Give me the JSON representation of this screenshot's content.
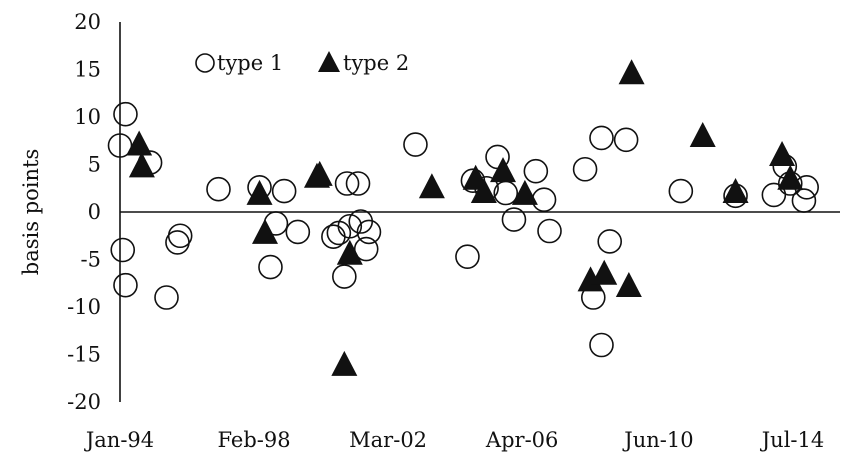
{
  "chart_data": {
    "type": "scatter",
    "title": "",
    "xlabel": "",
    "ylabel": "basis points",
    "x_tick_labels": [
      "Jan-94",
      "Feb-98",
      "Mar-02",
      "Apr-06",
      "Jun-10",
      "Jul-14"
    ],
    "x_tick_dates": [
      "1994-01",
      "1998-02",
      "2002-03",
      "2006-04",
      "2010-06",
      "2014-07"
    ],
    "ylim": [
      -20,
      20
    ],
    "y_ticks": [
      -20,
      -15,
      -10,
      -5,
      0,
      5,
      10,
      15,
      20
    ],
    "grid": false,
    "legend": "top-left",
    "series": [
      {
        "name": "type 1",
        "marker": "open-circle",
        "color": "#111111",
        "points": [
          {
            "x": "1994-01",
            "y": 7.0
          },
          {
            "x": "1994-03",
            "y": 10.3
          },
          {
            "x": "1994-02",
            "y": -4.0
          },
          {
            "x": "1994-03",
            "y": -7.7
          },
          {
            "x": "1994-12",
            "y": 5.2
          },
          {
            "x": "1995-06",
            "y": -9.0
          },
          {
            "x": "1995-10",
            "y": -3.2
          },
          {
            "x": "1995-11",
            "y": -2.5
          },
          {
            "x": "1997-01",
            "y": 2.4
          },
          {
            "x": "1998-04",
            "y": 2.6
          },
          {
            "x": "1998-10",
            "y": -1.2
          },
          {
            "x": "1999-01",
            "y": 2.2
          },
          {
            "x": "1998-08",
            "y": -5.8
          },
          {
            "x": "1999-06",
            "y": -2.1
          },
          {
            "x": "2000-07",
            "y": -2.6
          },
          {
            "x": "2000-09",
            "y": -2.2
          },
          {
            "x": "2000-12",
            "y": 3.0
          },
          {
            "x": "2001-01",
            "y": -1.5
          },
          {
            "x": "2001-04",
            "y": 3.0
          },
          {
            "x": "2001-05",
            "y": -1.0
          },
          {
            "x": "2001-07",
            "y": -3.9
          },
          {
            "x": "2001-08",
            "y": -2.1
          },
          {
            "x": "2000-11",
            "y": -6.8
          },
          {
            "x": "2003-01",
            "y": 7.1
          },
          {
            "x": "2004-08",
            "y": -4.7
          },
          {
            "x": "2004-10",
            "y": 3.3
          },
          {
            "x": "2005-07",
            "y": 5.8
          },
          {
            "x": "2005-03",
            "y": 2.5
          },
          {
            "x": "2005-10",
            "y": 2.0
          },
          {
            "x": "2006-01",
            "y": -0.8
          },
          {
            "x": "2006-09",
            "y": 4.3
          },
          {
            "x": "2006-12",
            "y": 1.3
          },
          {
            "x": "2007-02",
            "y": -2.0
          },
          {
            "x": "2008-03",
            "y": 4.5
          },
          {
            "x": "2008-06",
            "y": -9.0
          },
          {
            "x": "2008-09",
            "y": 7.8
          },
          {
            "x": "2008-12",
            "y": -3.1
          },
          {
            "x": "2009-06",
            "y": 7.6
          },
          {
            "x": "2008-09",
            "y": -14.0
          },
          {
            "x": "2011-02",
            "y": 2.2
          },
          {
            "x": "2012-10",
            "y": 1.7
          },
          {
            "x": "2013-12",
            "y": 1.8
          },
          {
            "x": "2014-04",
            "y": 4.8
          },
          {
            "x": "2014-06",
            "y": 3.0
          },
          {
            "x": "2014-12",
            "y": 2.6
          },
          {
            "x": "2014-11",
            "y": 1.2
          }
        ]
      },
      {
        "name": "type 2",
        "marker": "filled-triangle",
        "color": "#111111",
        "points": [
          {
            "x": "1994-08",
            "y": 7.0
          },
          {
            "x": "1994-09",
            "y": 4.7
          },
          {
            "x": "1998-04",
            "y": 1.8
          },
          {
            "x": "1998-06",
            "y": -2.3
          },
          {
            "x": "2000-01",
            "y": 3.6
          },
          {
            "x": "2000-02",
            "y": 3.8
          },
          {
            "x": "2001-01",
            "y": -4.5
          },
          {
            "x": "2000-11",
            "y": -16.2
          },
          {
            "x": "2003-07",
            "y": 2.5
          },
          {
            "x": "2004-11",
            "y": 3.4
          },
          {
            "x": "2005-02",
            "y": 2.0
          },
          {
            "x": "2005-09",
            "y": 4.2
          },
          {
            "x": "2006-05",
            "y": 1.8
          },
          {
            "x": "2008-05",
            "y": -7.3
          },
          {
            "x": "2008-10",
            "y": -6.6
          },
          {
            "x": "2009-07",
            "y": -7.9
          },
          {
            "x": "2009-08",
            "y": 14.5
          },
          {
            "x": "2011-10",
            "y": 7.9
          },
          {
            "x": "2012-10",
            "y": 2.0
          },
          {
            "x": "2014-03",
            "y": 5.9
          },
          {
            "x": "2014-06",
            "y": 3.4
          }
        ]
      }
    ]
  }
}
